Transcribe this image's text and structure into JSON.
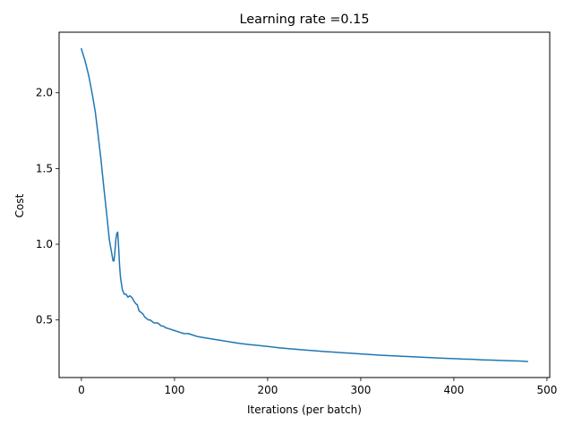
{
  "chart_data": {
    "type": "line",
    "title": "Learning rate =0.15",
    "xlabel": "Iterations (per batch)",
    "ylabel": "Cost",
    "xlim": [
      -23.95,
      502.95
    ],
    "ylim": [
      0.12,
      2.4
    ],
    "xticks": [
      0,
      100,
      200,
      300,
      400,
      500
    ],
    "xtick_labels": [
      "0",
      "100",
      "200",
      "300",
      "400",
      "500"
    ],
    "yticks": [
      0.5,
      1.0,
      1.5,
      2.0
    ],
    "ytick_labels": [
      "0.5",
      "1.0",
      "1.5",
      "2.0"
    ],
    "grid": false,
    "legend": "none",
    "series": [
      {
        "color": "#1f77b4",
        "x": [
          0,
          4,
          8,
          12,
          15,
          18,
          21,
          24,
          27,
          30,
          32,
          34,
          35,
          36,
          37,
          38,
          39,
          40,
          41,
          42,
          44,
          46,
          48,
          50,
          52,
          54,
          56,
          58,
          60,
          62,
          64,
          66,
          68,
          70,
          72,
          74,
          76,
          78,
          80,
          82,
          84,
          86,
          88,
          90,
          95,
          100,
          105,
          110,
          115,
          120,
          125,
          130,
          140,
          150,
          160,
          170,
          180,
          190,
          200,
          210,
          220,
          230,
          240,
          250,
          260,
          270,
          280,
          290,
          300,
          310,
          320,
          330,
          340,
          350,
          360,
          370,
          380,
          390,
          400,
          410,
          420,
          430,
          440,
          450,
          460,
          470,
          479
        ],
        "y": [
          2.29,
          2.21,
          2.11,
          1.98,
          1.87,
          1.72,
          1.56,
          1.38,
          1.21,
          1.03,
          0.96,
          0.89,
          0.89,
          0.95,
          1.03,
          1.07,
          1.08,
          0.98,
          0.86,
          0.78,
          0.7,
          0.67,
          0.67,
          0.65,
          0.66,
          0.65,
          0.63,
          0.61,
          0.6,
          0.56,
          0.55,
          0.54,
          0.52,
          0.51,
          0.5,
          0.5,
          0.49,
          0.48,
          0.48,
          0.48,
          0.47,
          0.46,
          0.46,
          0.45,
          0.44,
          0.43,
          0.42,
          0.41,
          0.41,
          0.4,
          0.39,
          0.385,
          0.375,
          0.365,
          0.355,
          0.345,
          0.338,
          0.332,
          0.325,
          0.318,
          0.312,
          0.307,
          0.302,
          0.297,
          0.292,
          0.288,
          0.284,
          0.28,
          0.276,
          0.272,
          0.268,
          0.265,
          0.262,
          0.259,
          0.256,
          0.253,
          0.25,
          0.247,
          0.245,
          0.242,
          0.24,
          0.237,
          0.235,
          0.233,
          0.231,
          0.229,
          0.226
        ]
      }
    ]
  }
}
